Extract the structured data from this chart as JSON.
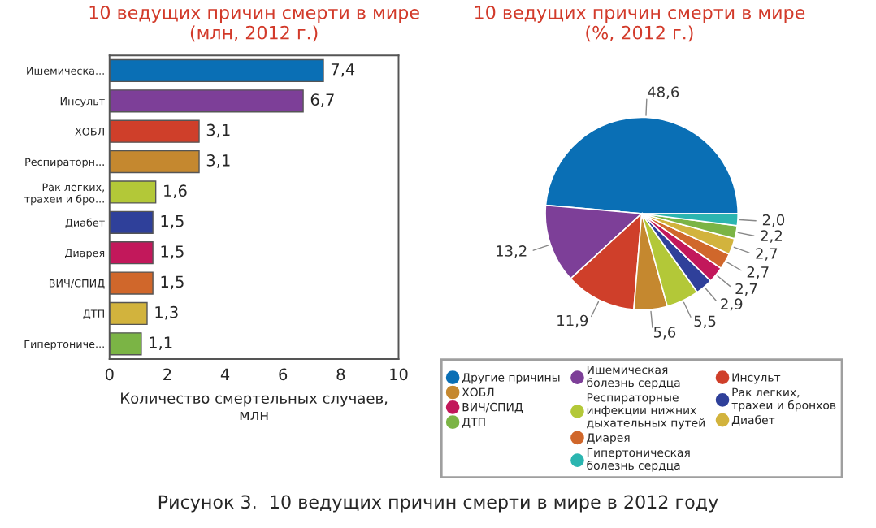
{
  "chart_data": [
    {
      "type": "bar",
      "orientation": "horizontal",
      "title": "10 ведущих причин смерти в мире\n(млн, 2012 г.)",
      "xlabel": "Количество смертельных случаев,\nмлн",
      "categories": [
        "Ишемическа...",
        "Инсульт",
        "ХОБЛ",
        "Респираторн...",
        "Рак легких,\nтрахеи и бро...",
        "Диабет",
        "Диарея",
        "ВИЧ/СПИД",
        "ДТП",
        "Гипертониче..."
      ],
      "values": [
        7.4,
        6.7,
        3.1,
        3.1,
        1.6,
        1.5,
        1.5,
        1.5,
        1.3,
        1.1
      ],
      "value_labels": [
        "7,4",
        "6,7",
        "3,1",
        "3,1",
        "1,6",
        "1,5",
        "1,5",
        "1,5",
        "1,3",
        "1,1"
      ],
      "colors": [
        "#0a6fb5",
        "#7d3f98",
        "#cf3f2a",
        "#c5882f",
        "#b3c838",
        "#2f409a",
        "#c2185b",
        "#d0672b",
        "#d2b33d",
        "#7bb445"
      ],
      "xlim": [
        0,
        10
      ],
      "xticks": [
        0,
        2,
        4,
        6,
        8,
        10
      ],
      "grid": false,
      "annotations": [
        "Рисунок 3.  10 ведущих причин смерти в мире в 2012 году"
      ]
    },
    {
      "type": "pie",
      "title": "10 ведущих причин смерти в мире\n(%, 2012 г.)",
      "categories": [
        "Другие причины",
        "Ишемическая\nболезнь сердца",
        "Инсульт",
        "ХОБЛ",
        "Респираторные\nинфекции нижних\nдыхательных путей",
        "Рак легких,\nтрахеи и бронхов",
        "ВИЧ/СПИД",
        "Диарея",
        "Диабет",
        "ДТП",
        "Гипертоническая\nболезнь сердца"
      ],
      "values": [
        48.6,
        13.2,
        11.9,
        5.6,
        5.5,
        2.9,
        2.7,
        2.7,
        2.7,
        2.2,
        2.0
      ],
      "value_labels": [
        "48,6",
        "13,2",
        "11,9",
        "5,6",
        "5,5",
        "2,9",
        "2,7",
        "2,7",
        "2,7",
        "2,2",
        "2,0"
      ],
      "colors": [
        "#0a6fb5",
        "#7d3f98",
        "#cf3f2a",
        "#c5882f",
        "#b3c838",
        "#2f409a",
        "#c2185b",
        "#d0672b",
        "#d2b33d",
        "#7bb445",
        "#2bb5b0"
      ],
      "legend": "bottom"
    }
  ]
}
